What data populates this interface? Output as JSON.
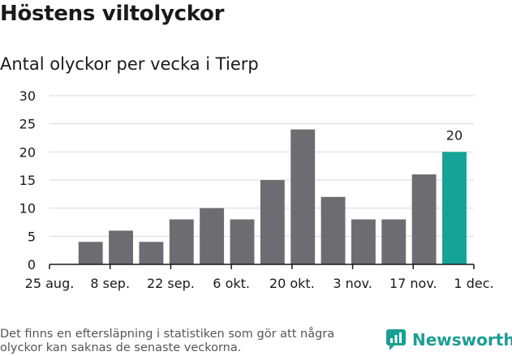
{
  "title": "Höstens viltolyckor",
  "subtitle": "Antal olyckor per vecka i Tierp",
  "footnote": "Det finns en eftersläpning i statistiken som gör att några olyckor kan saknas de senaste veckorna.",
  "brand": "Newsworthy",
  "colors": {
    "bar": "#6d6c71",
    "highlight": "#14a396",
    "grid": "#d9d9d9",
    "axis": "#1a1a1a",
    "text": "#1a1a1a"
  },
  "chart_data": {
    "type": "bar",
    "x": [
      "2020-08-31",
      "2020-09-07",
      "2020-09-14",
      "2020-09-21",
      "2020-09-28",
      "2020-10-05",
      "2020-10-12",
      "2020-10-19",
      "2020-10-26",
      "2020-11-02",
      "2020-11-09",
      "2020-11-16",
      "2020-11-23"
    ],
    "values": [
      4,
      6,
      4,
      8,
      10,
      8,
      15,
      24,
      12,
      8,
      8,
      16,
      20
    ],
    "highlight_index": 12,
    "data_label": "20",
    "x_ticks": [
      {
        "date": "2020-08-25",
        "label": "25 aug."
      },
      {
        "date": "2020-09-08",
        "label": "8 sep."
      },
      {
        "date": "2020-09-22",
        "label": "22 sep."
      },
      {
        "date": "2020-10-06",
        "label": "6 okt."
      },
      {
        "date": "2020-10-20",
        "label": "20 okt."
      },
      {
        "date": "2020-11-03",
        "label": "3 nov."
      },
      {
        "date": "2020-11-17",
        "label": "17 nov."
      },
      {
        "date": "2020-12-01",
        "label": "1 dec."
      }
    ],
    "xlim": [
      "2020-08-25",
      "2020-12-01"
    ],
    "yticks": [
      0,
      5,
      10,
      15,
      20,
      25,
      30
    ],
    "ylim": [
      0,
      30
    ],
    "grid": true,
    "xlabel": "",
    "ylabel": ""
  }
}
